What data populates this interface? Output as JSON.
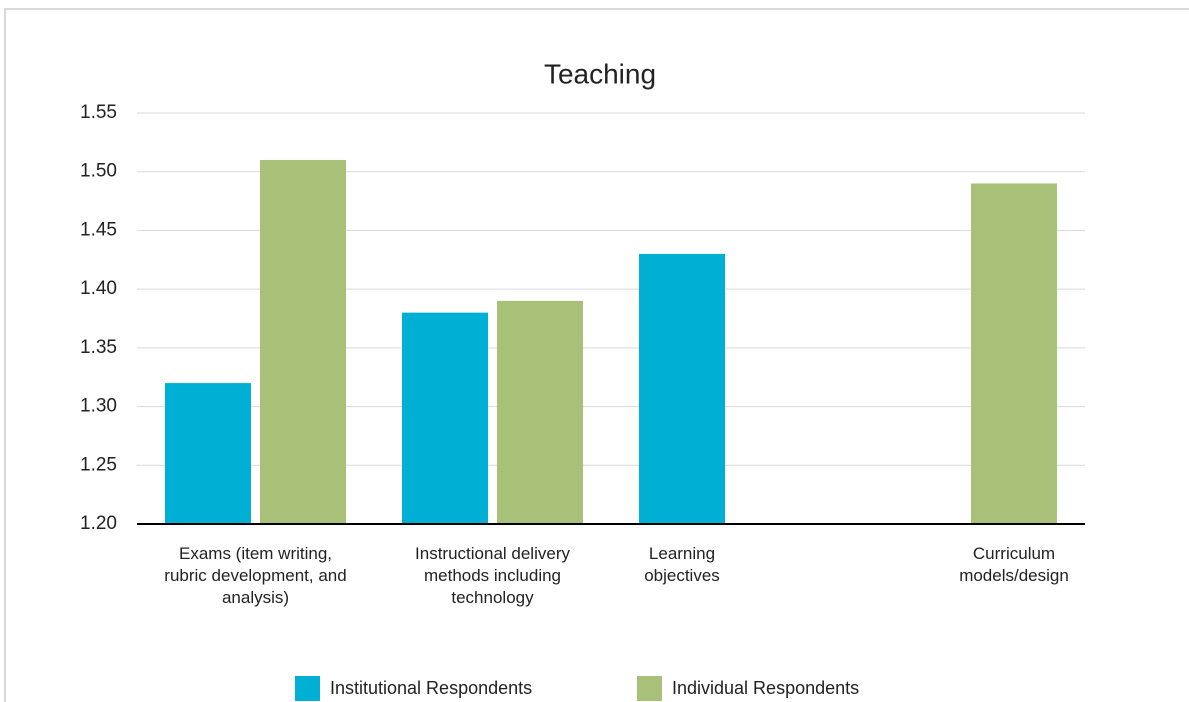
{
  "chart_data": {
    "type": "bar",
    "title": "Teaching",
    "categories": [
      "Exams (item writing, rubric development, and analysis)",
      "Instructional delivery methods including technology",
      "Learning objectives",
      "Curriculum models/design"
    ],
    "series": [
      {
        "name": "Institutional Respondents",
        "color": "#00b0d4",
        "values": [
          1.32,
          1.38,
          1.43,
          null
        ]
      },
      {
        "name": "Individual Respondents",
        "color": "#a9c078",
        "values": [
          1.51,
          1.39,
          null,
          1.49
        ]
      }
    ],
    "ylim": [
      1.2,
      1.55
    ],
    "yticks": [
      {
        "value": 1.2,
        "label": "1.20"
      },
      1.25,
      {
        "value": 1.3,
        "label": "1.30"
      },
      1.35,
      {
        "value": 1.4,
        "label": "1.40"
      },
      1.45,
      {
        "value": 1.5,
        "label": "1.50"
      },
      1.55
    ],
    "grid": true,
    "legend": "bottom"
  }
}
